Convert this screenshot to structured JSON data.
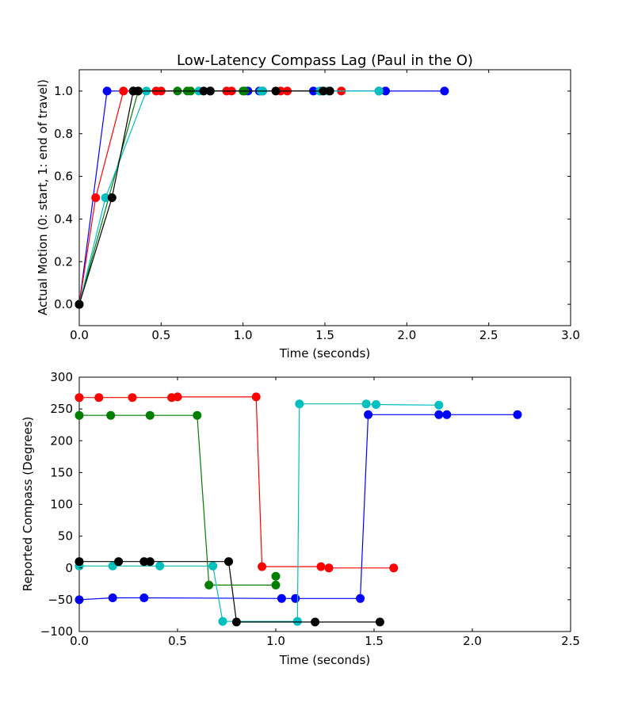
{
  "chart_data": [
    {
      "type": "line",
      "title": "Low-Latency Compass Lag (Paul in the O)",
      "xlabel": "Time (seconds)",
      "ylabel": "Actual Motion (0: start, 1: end of travel)",
      "xlim": [
        0,
        3
      ],
      "ylim": [
        -0.1,
        1.1
      ],
      "xticks": [
        0,
        0.5,
        1,
        1.5,
        2,
        2.5,
        3
      ],
      "xtick_labels": [
        "0.0",
        "0.5",
        "1.0",
        "1.5",
        "2.0",
        "2.5",
        "3.0"
      ],
      "yticks": [
        0,
        0.2,
        0.4,
        0.6,
        0.8,
        1.0
      ],
      "ytick_labels": [
        "0.0",
        "0.2",
        "0.4",
        "0.6",
        "0.8",
        "1.0"
      ],
      "grid": false,
      "series": [
        {
          "color": "#0000ff",
          "x": [
            0,
            0.17,
            0.33,
            0.8,
            1.03,
            1.1,
            1.12,
            1.43,
            1.47,
            1.83,
            1.87,
            2.23
          ],
          "y": [
            0,
            1,
            1,
            1,
            1,
            1,
            1,
            1,
            1,
            1,
            1,
            1
          ]
        },
        {
          "color": "#007f00",
          "x": [
            0,
            0.36,
            0.6,
            0.66,
            0.68,
            1.0,
            1.01
          ],
          "y": [
            0,
            1,
            1,
            1,
            1,
            1,
            1
          ]
        },
        {
          "color": "#ff0000",
          "x": [
            0,
            0.1,
            0.27,
            0.47,
            0.5,
            0.9,
            0.93,
            1.23,
            1.27,
            1.6
          ],
          "y": [
            0,
            0.5,
            1,
            1,
            1,
            1,
            1,
            1,
            1,
            1
          ]
        },
        {
          "color": "#00bfbf",
          "x": [
            0,
            0.16,
            0.41,
            0.73,
            1.11,
            1.12,
            1.47,
            1.52,
            1.83
          ],
          "y": [
            0,
            0.5,
            1,
            1,
            1,
            1,
            1,
            1,
            1
          ]
        },
        {
          "color": "#000000",
          "x": [
            0,
            0.2,
            0.33,
            0.36,
            0.76,
            0.8,
            1.2,
            1.49,
            1.53
          ],
          "y": [
            0,
            0.5,
            1,
            1,
            1,
            1,
            1,
            1,
            1
          ]
        }
      ]
    },
    {
      "type": "line",
      "title": "",
      "xlabel": "Time (seconds)",
      "ylabel": "Reported Compass (Degrees)",
      "xlim": [
        0,
        2.5
      ],
      "ylim": [
        -100,
        300
      ],
      "xticks": [
        0,
        0.5,
        1,
        1.5,
        2,
        2.5
      ],
      "xtick_labels": [
        "0.0",
        "0.5",
        "1.0",
        "1.5",
        "2.0",
        "2.5"
      ],
      "yticks": [
        -100,
        -50,
        0,
        50,
        100,
        150,
        200,
        250,
        300
      ],
      "ytick_labels": [
        "−100",
        "−50",
        "0",
        "50",
        "100",
        "150",
        "200",
        "250",
        "300"
      ],
      "grid": false,
      "series": [
        {
          "color": "#ff0000",
          "x": [
            0,
            0.1,
            0.27,
            0.47,
            0.5,
            0.9,
            0.93,
            1.23,
            1.27,
            1.6
          ],
          "y": [
            268,
            268,
            268,
            268,
            269,
            269,
            2,
            2,
            0,
            0
          ]
        },
        {
          "color": "#007f00",
          "x": [
            0,
            0.16,
            0.36,
            0.6,
            0.66,
            1.0,
            1.0
          ],
          "y": [
            240,
            240,
            240,
            240,
            -27,
            -27,
            -13
          ]
        },
        {
          "color": "#0000ff",
          "x": [
            0,
            0.17,
            0.33,
            1.03,
            1.1,
            1.43,
            1.47,
            1.83,
            1.87,
            2.23
          ],
          "y": [
            -50,
            -47,
            -47,
            -48,
            -48,
            -48,
            241,
            241,
            241,
            241
          ]
        },
        {
          "color": "#00bfbf",
          "x": [
            0,
            0.17,
            0.41,
            0.68,
            0.73,
            1.11,
            1.12,
            1.46,
            1.51,
            1.83
          ],
          "y": [
            3,
            3,
            3,
            3,
            -84,
            -84,
            258,
            258,
            257,
            256
          ]
        },
        {
          "color": "#000000",
          "x": [
            0,
            0.2,
            0.33,
            0.36,
            0.76,
            0.8,
            1.2,
            1.53
          ],
          "y": [
            10,
            10,
            10,
            10,
            10,
            -85,
            -85,
            -85
          ]
        }
      ]
    }
  ]
}
